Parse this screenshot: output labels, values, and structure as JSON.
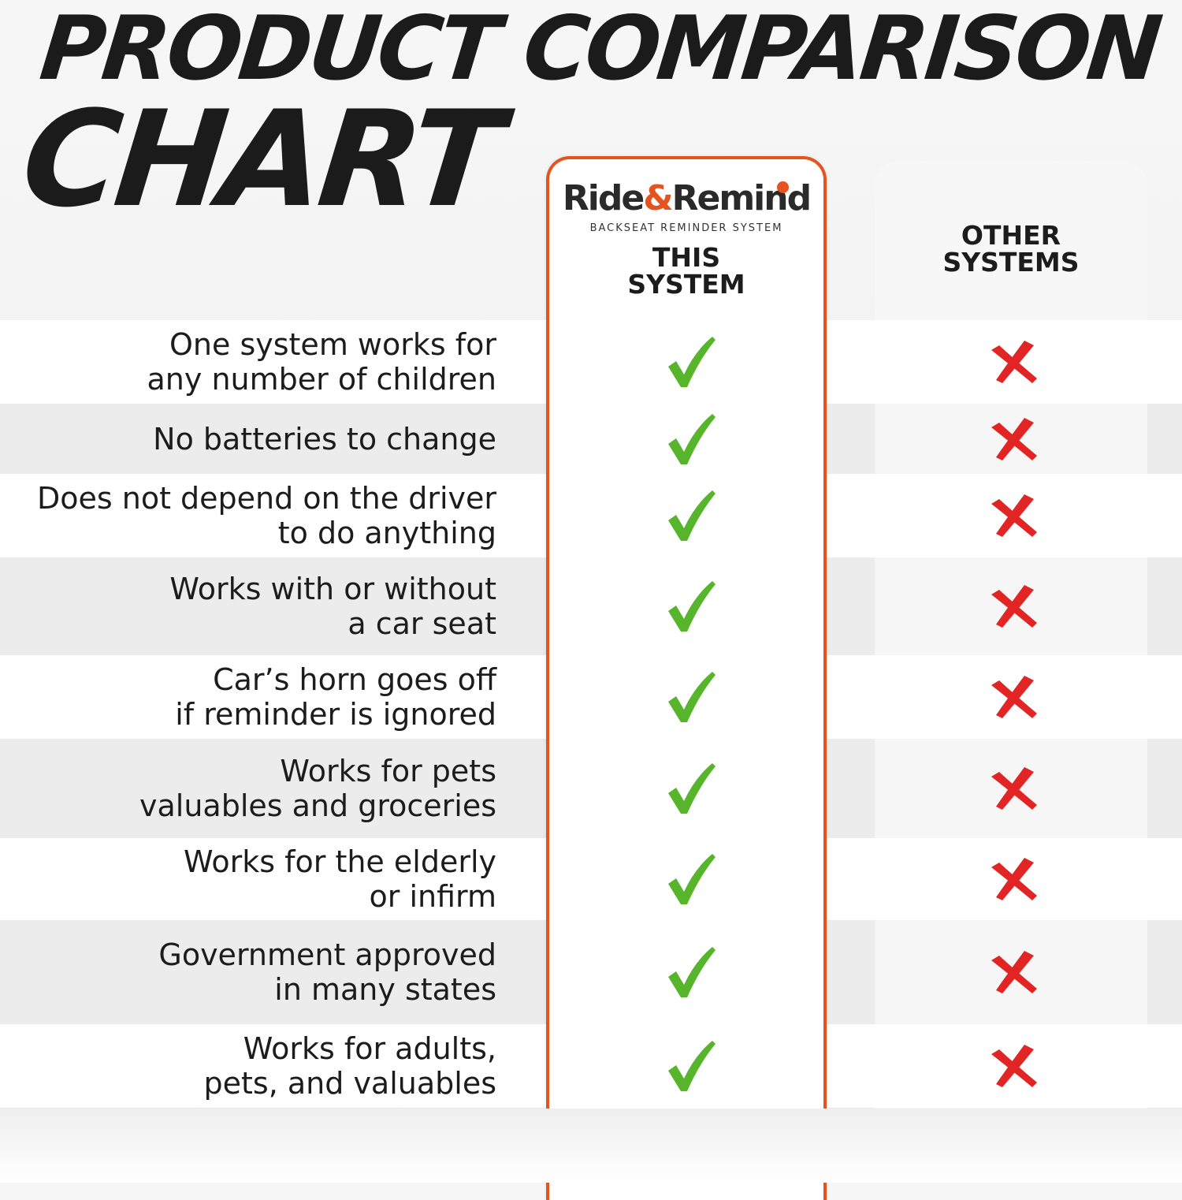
{
  "title": {
    "line1": "PRODUCT COMPARISON",
    "line2": "CHART"
  },
  "columns": {
    "this": {
      "brand_name_part1": "Ride",
      "brand_ampersand": "&",
      "brand_name_part2": "Remind",
      "brand_tagline": "BACKSEAT REMINDER SYSTEM",
      "header": "THIS\nSYSTEM"
    },
    "other": {
      "header": "OTHER\nSYSTEMS"
    }
  },
  "features": [
    {
      "text": "One system works for\nany number of children",
      "this": "check",
      "other": "cross"
    },
    {
      "text": "No batteries to change",
      "this": "check",
      "other": "cross"
    },
    {
      "text": "Does not depend on the driver\nto do anything",
      "this": "check",
      "other": "cross"
    },
    {
      "text": "Works with or without\na car seat",
      "this": "check",
      "other": "cross"
    },
    {
      "text": "Car’s horn goes off\nif reminder is ignored",
      "this": "check",
      "other": "cross"
    },
    {
      "text": "Works for pets\nvaluables and groceries",
      "this": "check",
      "other": "cross"
    },
    {
      "text": "Works for the elderly\nor infirm",
      "this": "check",
      "other": "cross"
    },
    {
      "text": "Government approved\nin many states",
      "this": "check",
      "other": "cross"
    },
    {
      "text": "Works for adults,\npets, and valuables",
      "this": "check",
      "other": "cross"
    }
  ],
  "colors": {
    "accent": "#e5531f",
    "check": "#57b52b",
    "cross": "#e32424"
  },
  "icons": {
    "check": "checkmark-icon",
    "cross": "cross-icon"
  }
}
